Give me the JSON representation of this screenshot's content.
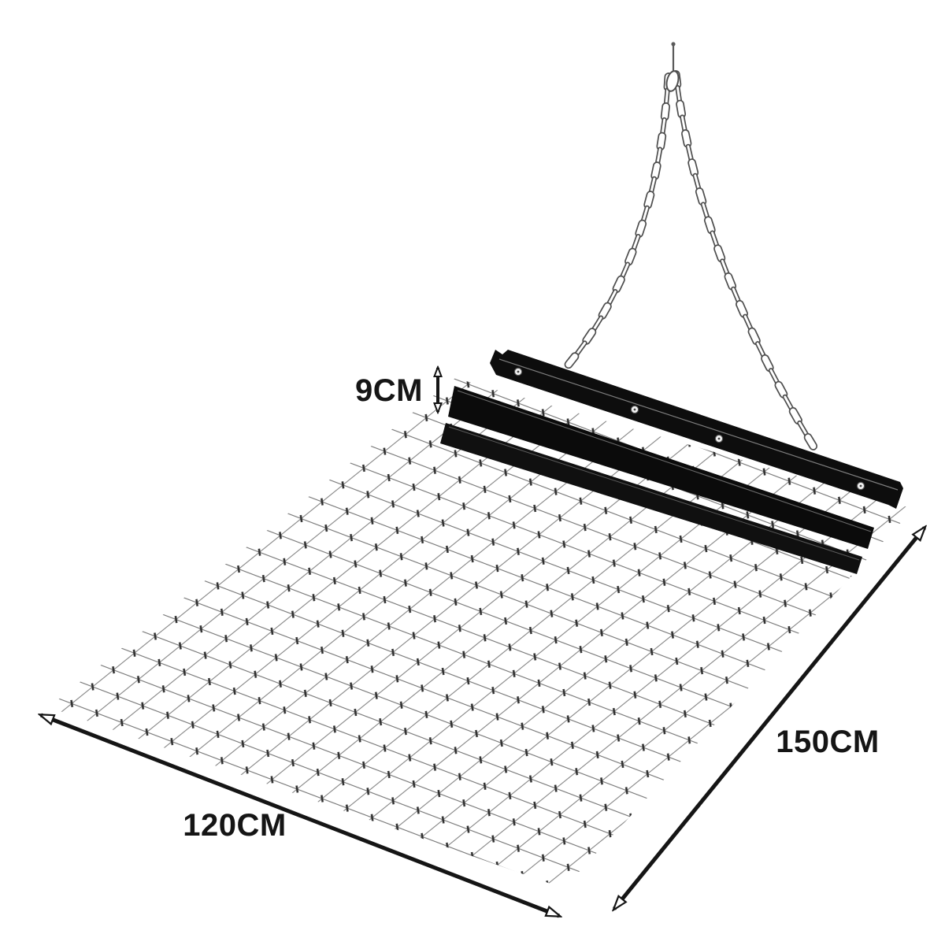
{
  "labels": {
    "height": "9CM",
    "width": "120CM",
    "length": "150CM"
  },
  "colors": {
    "ink": "#151515",
    "bar": "#0d0d0d",
    "wire": "#6f6f6f",
    "wire_joint": "#2e2e2e",
    "chain_outline": "#4d4d4d",
    "background": "#ffffff"
  }
}
